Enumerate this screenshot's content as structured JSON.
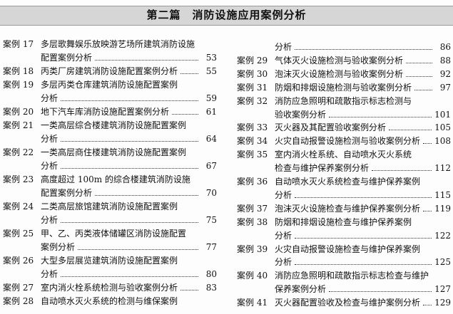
{
  "header": {
    "title": "第二篇　消防设施应用案例分析"
  },
  "left": [
    {
      "label": "案例 17",
      "lines": [
        "多层歌舞娱乐放映游艺场所建筑消防设施",
        "配置案例分析"
      ],
      "page": 53
    },
    {
      "label": "案例 18",
      "lines": [
        "丙类厂房建筑消防设施配置案例分析"
      ],
      "page": 55
    },
    {
      "label": "案例 19",
      "lines": [
        "多层丙类仓库建筑消防设施配置案例",
        "分析"
      ],
      "page": 59
    },
    {
      "label": "案例 20",
      "lines": [
        "地下汽车库消防设施配置案例分析"
      ],
      "page": 61
    },
    {
      "label": "案例 21",
      "lines": [
        "一类高层综合楼建筑消防设施配置案例",
        "分析"
      ],
      "page": 64
    },
    {
      "label": "案例 22",
      "lines": [
        "一类高层商住楼建筑消防设施配置案例",
        "分析"
      ],
      "page": 67
    },
    {
      "label": "案例 23",
      "lines": [
        "高度超过 100m 的综合楼建筑消防设施",
        "配置案例分析"
      ],
      "page": 70
    },
    {
      "label": "案例 24",
      "lines": [
        "二类高层旅馆建筑消防设施配置案例",
        "分析"
      ],
      "page": 75
    },
    {
      "label": "案例 25",
      "lines": [
        "甲、乙、丙类液体储罐区消防设施配置",
        "案例分析"
      ],
      "page": 77
    },
    {
      "label": "案例 26",
      "lines": [
        "大型多层展览建筑消防设施配置案例",
        "分析"
      ],
      "page": 80
    },
    {
      "label": "案例 27",
      "lines": [
        "室内消火栓系统检测与验收案例分析"
      ],
      "page": 83
    },
    {
      "label": "案例 28",
      "lines": [
        "自动喷水灭火系统的检测与维保案例"
      ]
    }
  ],
  "right": [
    {
      "lines": [
        "分析"
      ],
      "page": 86
    },
    {
      "label": "案例 29",
      "lines": [
        "气体灭火设施检测与验收案例分析"
      ],
      "page": 88
    },
    {
      "label": "案例 30",
      "lines": [
        "泡沫灭火设施检测与验收案例分析"
      ],
      "page": 92
    },
    {
      "label": "案例 31",
      "lines": [
        "防烟和排烟设施检测与验收案例分析"
      ],
      "page": 97
    },
    {
      "label": "案例 32",
      "lines": [
        "消防应急照明和疏散指示标志检测与",
        "验收案例分析"
      ],
      "page": 101
    },
    {
      "label": "案例 33",
      "lines": [
        "灭火器及其配置验收案例分析"
      ],
      "page": 105
    },
    {
      "label": "案例 34",
      "lines": [
        "火灾自动报警设施检测与验收案例分析"
      ],
      "page": 108
    },
    {
      "label": "案例 35",
      "lines": [
        "室内消火栓系统、自动喷水灭火系统",
        "检查与维护保养案例分析"
      ],
      "page": 112
    },
    {
      "label": "案例 36",
      "lines": [
        "自动喷水灭火系统检查与维护保养案例",
        "分析"
      ],
      "page": 115
    },
    {
      "label": "案例 37",
      "lines": [
        "泡沫灭火设施检查与维护保养案例分析"
      ],
      "page": 119
    },
    {
      "label": "案例 38",
      "lines": [
        "防烟和排烟设施检查与维护保养案例",
        "分析"
      ],
      "page": 122
    },
    {
      "label": "案例 39",
      "lines": [
        "火灾自动报警设施检查与维护保养案例",
        "分析"
      ],
      "page": 125
    },
    {
      "label": "案例 40",
      "lines": [
        "消防应急照明和疏散指示标志检查与维护",
        "保养案例分析"
      ],
      "page": 127
    },
    {
      "label": "案例 41",
      "lines": [
        "灭火器配置验收及检查与维护案例分析"
      ],
      "page": 129
    }
  ]
}
